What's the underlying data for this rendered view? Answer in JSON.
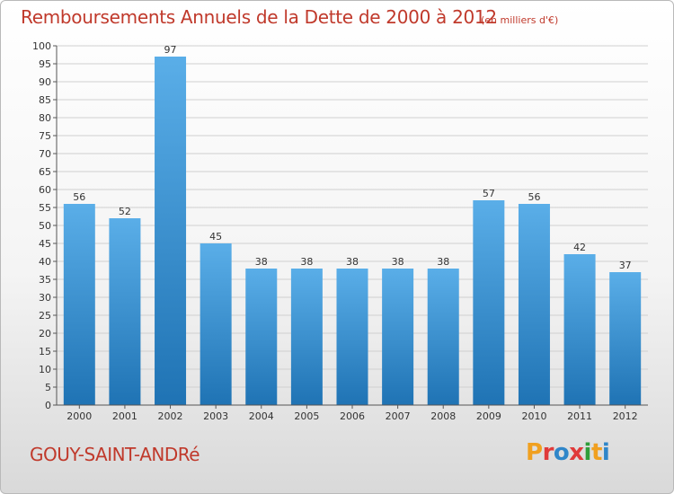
{
  "header": {
    "title": "Remboursements Annuels de la Dette de 2000 à 2012",
    "subtitle": "(en milliers d'€)"
  },
  "footer": {
    "town": "GOUY-SAINT-ANDRé",
    "logo": "Proxiti"
  },
  "colors": {
    "title": "#c0392b",
    "bar_top": "#5aaee8",
    "bar_bottom": "#1f73b4",
    "grid": "#d0d0d0",
    "logo_letters": [
      "#f0a020",
      "#e03a3a",
      "#2f86c9",
      "#e03a3a",
      "#2f9e3a",
      "#f0a020",
      "#2f86c9"
    ]
  },
  "chart_data": {
    "type": "bar",
    "categories": [
      "2000",
      "2001",
      "2002",
      "2003",
      "2004",
      "2005",
      "2006",
      "2007",
      "2008",
      "2009",
      "2010",
      "2011",
      "2012"
    ],
    "values": [
      56,
      52,
      97,
      45,
      38,
      38,
      38,
      38,
      38,
      57,
      56,
      42,
      37
    ],
    "ylim": [
      0,
      100
    ],
    "yticks": [
      0,
      5,
      10,
      15,
      20,
      25,
      30,
      35,
      40,
      45,
      50,
      55,
      60,
      65,
      70,
      75,
      80,
      85,
      90,
      95,
      100
    ],
    "grid": true,
    "data_labels": true
  }
}
